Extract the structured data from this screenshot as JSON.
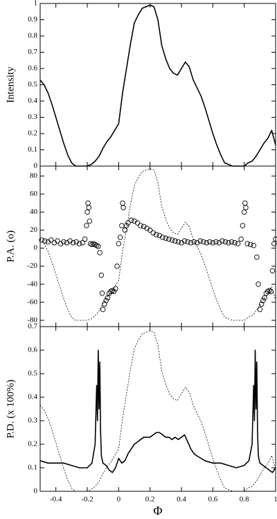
{
  "chart_data": [
    {
      "type": "line",
      "y_label": "Intensity",
      "x": [
        -0.5,
        -0.475,
        -0.45,
        -0.425,
        -0.4,
        -0.375,
        -0.35,
        -0.325,
        -0.3,
        -0.275,
        -0.25,
        -0.225,
        -0.2,
        -0.175,
        -0.15,
        -0.125,
        -0.1,
        -0.075,
        -0.05,
        -0.025,
        0,
        0.025,
        0.05,
        0.075,
        0.1,
        0.125,
        0.15,
        0.175,
        0.2,
        0.225,
        0.25,
        0.275,
        0.3,
        0.325,
        0.35,
        0.375,
        0.4,
        0.425,
        0.45,
        0.475,
        0.5,
        0.525,
        0.55,
        0.575,
        0.6,
        0.625,
        0.65,
        0.675,
        0.7,
        0.725,
        0.75,
        0.775,
        0.8,
        0.825,
        0.85,
        0.875,
        0.9,
        0.925,
        0.95,
        0.975,
        1.0
      ],
      "series": [
        {
          "color": "#000000",
          "style": "solid",
          "values": [
            0.53,
            0.5,
            0.45,
            0.38,
            0.3,
            0.22,
            0.14,
            0.07,
            0.02,
            0,
            0,
            0,
            0,
            0.01,
            0.03,
            0.06,
            0.11,
            0.15,
            0.18,
            0.22,
            0.26,
            0.45,
            0.6,
            0.75,
            0.88,
            0.93,
            0.97,
            0.98,
            0.99,
            0.98,
            0.9,
            0.74,
            0.66,
            0.6,
            0.57,
            0.56,
            0.6,
            0.64,
            0.61,
            0.53,
            0.48,
            0.43,
            0.36,
            0.28,
            0.2,
            0.13,
            0.07,
            0.02,
            0.01,
            0,
            0,
            0,
            0,
            0.02,
            0.03,
            0.06,
            0.1,
            0.14,
            0.17,
            0.22,
            0.13
          ]
        }
      ],
      "xlim": [
        -0.5,
        1
      ],
      "ylim": [
        0,
        1
      ],
      "yticks": [
        0,
        0.1,
        0.2,
        0.3,
        0.4,
        0.5,
        0.6,
        0.7,
        0.8,
        0.9,
        1
      ]
    },
    {
      "type": "scatter",
      "y_label": "P.A. (o)",
      "x": [
        -0.5,
        -0.475,
        -0.45,
        -0.425,
        -0.4,
        -0.375,
        -0.35,
        -0.325,
        -0.3,
        -0.275,
        -0.25,
        -0.225,
        -0.2,
        -0.175,
        -0.15,
        -0.125,
        -0.1,
        -0.075,
        -0.05,
        -0.025,
        0,
        0.025,
        0.05,
        0.075,
        0.1,
        0.125,
        0.15,
        0.175,
        0.2,
        0.225,
        0.25,
        0.275,
        0.3,
        0.325,
        0.35,
        0.375,
        0.4,
        0.425,
        0.45,
        0.475,
        0.5,
        0.525,
        0.55,
        0.575,
        0.6,
        0.625,
        0.65,
        0.675,
        0.7,
        0.725,
        0.75,
        0.775,
        0.8,
        0.825,
        0.85,
        0.875,
        0.9,
        0.925,
        0.95,
        0.975,
        1.0
      ],
      "series": [
        {
          "color": "#000000",
          "style": "circles",
          "x": [
            -0.49,
            -0.47,
            -0.45,
            -0.43,
            -0.41,
            -0.39,
            -0.37,
            -0.35,
            -0.33,
            -0.31,
            -0.29,
            -0.27,
            -0.25,
            -0.23,
            -0.215,
            -0.205,
            -0.2,
            -0.195,
            -0.19,
            -0.185,
            -0.18,
            -0.17,
            -0.16,
            -0.15,
            -0.14,
            -0.13,
            -0.12,
            -0.11,
            -0.105,
            -0.1,
            -0.09,
            -0.08,
            -0.07,
            -0.06,
            -0.05,
            -0.04,
            -0.03,
            -0.02,
            -0.01,
            0,
            0.01,
            0.02,
            0.025,
            0.03,
            0.04,
            0.05,
            0.06,
            0.08,
            0.1,
            0.12,
            0.14,
            0.16,
            0.18,
            0.2,
            0.22,
            0.24,
            0.26,
            0.28,
            0.3,
            0.32,
            0.34,
            0.36,
            0.38,
            0.4,
            0.42,
            0.44,
            0.46,
            0.48,
            0.5,
            0.52,
            0.54,
            0.56,
            0.58,
            0.6,
            0.62,
            0.64,
            0.66,
            0.68,
            0.7,
            0.72,
            0.74,
            0.76,
            0.78,
            0.79,
            0.8,
            0.805,
            0.81,
            0.82,
            0.84,
            0.86,
            0.88,
            0.89,
            0.9,
            0.91,
            0.92,
            0.93,
            0.94,
            0.95,
            0.96,
            0.97,
            0.98,
            0.99,
            1.0
          ],
          "values": [
            9,
            8,
            7,
            9,
            6,
            8,
            5,
            7,
            6,
            8,
            6,
            7,
            5,
            6,
            10,
            25,
            40,
            50,
            45,
            30,
            5,
            4,
            5,
            4,
            3,
            2,
            -5,
            -30,
            -50,
            -68,
            -62,
            -58,
            -55,
            -50,
            -48,
            -47,
            -48,
            -45,
            -20,
            5,
            12,
            25,
            50,
            45,
            20,
            25,
            28,
            31,
            30,
            28,
            25,
            24,
            22,
            20,
            17,
            15,
            14,
            12,
            11,
            10,
            9,
            8,
            7,
            6,
            8,
            7,
            6,
            7,
            6,
            8,
            7,
            6,
            7,
            6,
            7,
            6,
            8,
            7,
            6,
            7,
            6,
            5,
            10,
            25,
            40,
            50,
            45,
            5,
            4,
            3,
            -10,
            -40,
            -68,
            -62,
            -58,
            -55,
            -50,
            -48,
            -47,
            -48,
            -25,
            5,
            10
          ]
        },
        {
          "color": "#000000",
          "style": "dashed",
          "values": [
            10,
            5,
            -3.5,
            -15.4,
            -29,
            -42.6,
            -56.2,
            -68.1,
            -76.6,
            -80,
            -80,
            -80,
            -80,
            -78.3,
            -74.9,
            -69.8,
            -61.3,
            -54.5,
            -49.4,
            -42.6,
            -35.8,
            -3.5,
            22,
            47.5,
            69.6,
            78.1,
            84.9,
            86.6,
            88.3,
            86.6,
            73,
            45.8,
            32.2,
            22,
            16.9,
            15.2,
            22,
            28.8,
            23.7,
            10.1,
            1.6,
            -6.9,
            -18.8,
            -32.4,
            -46,
            -57.9,
            -68.1,
            -76.6,
            -78.3,
            -80,
            -80,
            -80,
            -80,
            -76.6,
            -74.9,
            -69.8,
            -63,
            -56.2,
            -51.1,
            -42.6,
            -57.9
          ]
        }
      ],
      "xlim": [
        -0.5,
        1
      ],
      "ylim": [
        -87,
        91
      ],
      "yticks": [
        -80,
        -60,
        -40,
        -20,
        0,
        20,
        40,
        60,
        80
      ]
    },
    {
      "type": "line",
      "y_label": "P.D. (x 100%)",
      "x_label": "Φ",
      "x": [
        -0.5,
        -0.475,
        -0.45,
        -0.425,
        -0.4,
        -0.375,
        -0.35,
        -0.325,
        -0.3,
        -0.275,
        -0.25,
        -0.225,
        -0.2,
        -0.175,
        -0.15,
        -0.125,
        -0.1,
        -0.075,
        -0.05,
        -0.025,
        0,
        0.025,
        0.05,
        0.075,
        0.1,
        0.125,
        0.15,
        0.175,
        0.2,
        0.225,
        0.25,
        0.275,
        0.3,
        0.325,
        0.35,
        0.375,
        0.4,
        0.425,
        0.45,
        0.475,
        0.5,
        0.525,
        0.55,
        0.575,
        0.6,
        0.625,
        0.65,
        0.675,
        0.7,
        0.725,
        0.75,
        0.775,
        0.8,
        0.825,
        0.85,
        0.875,
        0.9,
        0.925,
        0.95,
        0.975,
        1.0
      ],
      "series": [
        {
          "color": "#000000",
          "style": "solid",
          "x": [
            -0.5,
            -0.45,
            -0.4,
            -0.35,
            -0.3,
            -0.25,
            -0.2,
            -0.17,
            -0.15,
            -0.14,
            -0.135,
            -0.13,
            -0.125,
            -0.12,
            -0.115,
            -0.11,
            -0.1,
            -0.08,
            -0.06,
            -0.04,
            -0.02,
            0,
            0.02,
            0.04,
            0.06,
            0.08,
            0.1,
            0.12,
            0.14,
            0.16,
            0.18,
            0.2,
            0.22,
            0.24,
            0.26,
            0.28,
            0.3,
            0.32,
            0.34,
            0.36,
            0.38,
            0.4,
            0.42,
            0.44,
            0.46,
            0.48,
            0.5,
            0.55,
            0.6,
            0.65,
            0.7,
            0.75,
            0.8,
            0.83,
            0.85,
            0.86,
            0.865,
            0.87,
            0.875,
            0.88,
            0.885,
            0.89,
            0.9,
            0.92,
            0.94,
            0.96,
            0.98,
            1.0
          ],
          "values": [
            0.13,
            0.12,
            0.12,
            0.12,
            0.11,
            0.1,
            0.1,
            0.12,
            0.2,
            0.45,
            0.3,
            0.6,
            0.35,
            0.55,
            0.25,
            0.15,
            0.12,
            0.11,
            0.09,
            0.08,
            0.1,
            0.14,
            0.12,
            0.13,
            0.16,
            0.18,
            0.2,
            0.21,
            0.22,
            0.23,
            0.23,
            0.23,
            0.24,
            0.25,
            0.25,
            0.24,
            0.23,
            0.23,
            0.22,
            0.23,
            0.22,
            0.23,
            0.24,
            0.21,
            0.18,
            0.16,
            0.15,
            0.13,
            0.12,
            0.12,
            0.11,
            0.1,
            0.11,
            0.13,
            0.2,
            0.45,
            0.3,
            0.6,
            0.35,
            0.55,
            0.25,
            0.15,
            0.12,
            0.11,
            0.1,
            0.09,
            0.08,
            0.1
          ]
        },
        {
          "color": "#000000",
          "style": "dashed",
          "values": [
            0.366,
            0.345,
            0.31,
            0.262,
            0.207,
            0.152,
            0.097,
            0.048,
            0.014,
            0,
            0,
            0,
            0,
            0.007,
            0.021,
            0.041,
            0.076,
            0.104,
            0.124,
            0.152,
            0.179,
            0.31,
            0.414,
            0.518,
            0.607,
            0.642,
            0.669,
            0.676,
            0.683,
            0.676,
            0.621,
            0.511,
            0.455,
            0.414,
            0.393,
            0.386,
            0.414,
            0.442,
            0.421,
            0.366,
            0.331,
            0.297,
            0.248,
            0.193,
            0.138,
            0.09,
            0.048,
            0.014,
            0.007,
            0,
            0,
            0,
            0,
            0.014,
            0.021,
            0.041,
            0.069,
            0.097,
            0.117,
            0.152,
            0.09
          ]
        }
      ],
      "xlim": [
        -0.5,
        1
      ],
      "ylim": [
        0,
        0.7
      ],
      "yticks": [
        0,
        0.1,
        0.2,
        0.3,
        0.4,
        0.5,
        0.6,
        0.7
      ],
      "xticks": [
        -0.4,
        -0.2,
        0,
        0.2,
        0.4,
        0.6,
        0.8,
        1
      ]
    }
  ]
}
